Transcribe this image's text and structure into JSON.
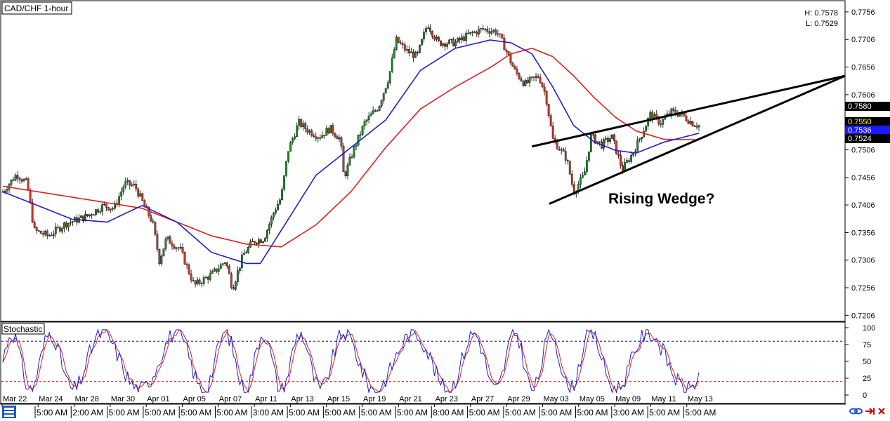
{
  "window": {
    "symbol_label": "CAD/CHF 1-hour"
  },
  "hl_box": {
    "high": "H: 0.7578",
    "low": "L: 0.7529"
  },
  "annotation": {
    "text": "Rising Wedge?"
  },
  "indicator": {
    "label": "Stochastic",
    "levels": [
      "100",
      "75",
      "50",
      "25",
      "0"
    ]
  },
  "price_tags": [
    {
      "label": "0.7580",
      "bg": "#000000",
      "fg": "#ffffff"
    },
    {
      "label": "0.7550",
      "bg": "#000000",
      "fg": "#ffff00"
    },
    {
      "label": "0.7536",
      "bg": "#1a1aff",
      "fg": "#ffffff"
    },
    {
      "label": "0.7524",
      "bg": "#000000",
      "fg": "#ffffff"
    }
  ],
  "colors": {
    "up": "#1f8a2d",
    "down": "#c0392b",
    "ma_fast": "#1f1fc8",
    "ma_slow": "#e02020",
    "stoch_k": "#1f1fc8",
    "stoch_d": "#e02020",
    "level_high": "#000080",
    "level_low": "#cc0000"
  },
  "icons": [
    "grid-menu-icon",
    "link-icon",
    "arrow-right-icon",
    "close-icon"
  ],
  "chart_data": {
    "type": "candlestick",
    "title": "CAD/CHF 1-hour",
    "y_ticks": [
      "0.7756",
      "0.7706",
      "0.7656",
      "0.7606",
      "0.7556",
      "0.7506",
      "0.7456",
      "0.7406",
      "0.7356",
      "0.7306",
      "0.7256",
      "0.7206"
    ],
    "ylim": [
      0.7195,
      0.7775
    ],
    "date_labels": [
      "Mar 22",
      "Mar 24",
      "Mar 28",
      "Mar 30",
      "Apr 01",
      "Apr 05",
      "Apr 07",
      "Apr 11",
      "Apr 13",
      "Apr 15",
      "Apr 19",
      "Apr 21",
      "Apr 23",
      "Apr 27",
      "Apr 29",
      "May 03",
      "May 05",
      "May 09",
      "May 11",
      "May 13"
    ],
    "time_labels": [
      "5:00 AM",
      "2:00 AM",
      "5:00 AM",
      "5:00 AM",
      "5:00 AM",
      "5:00 AM",
      "3:00 AM",
      "5:00 AM",
      "5:00 AM",
      "5:00 AM",
      "5:00 AM",
      "8:00 AM",
      "5:00 AM",
      "5:00 AM",
      "5:00 AM",
      "5:00 AM",
      "3:00 AM",
      "5:00 AM",
      "5:00 AM"
    ],
    "price_path": [
      [
        0,
        0.743
      ],
      [
        0.02,
        0.7462
      ],
      [
        0.035,
        0.7445
      ],
      [
        0.045,
        0.736
      ],
      [
        0.065,
        0.735
      ],
      [
        0.09,
        0.7372
      ],
      [
        0.12,
        0.7385
      ],
      [
        0.145,
        0.7405
      ],
      [
        0.16,
        0.74
      ],
      [
        0.175,
        0.7445
      ],
      [
        0.19,
        0.744
      ],
      [
        0.205,
        0.74
      ],
      [
        0.215,
        0.7375
      ],
      [
        0.225,
        0.7305
      ],
      [
        0.235,
        0.7345
      ],
      [
        0.255,
        0.7325
      ],
      [
        0.275,
        0.726
      ],
      [
        0.3,
        0.728
      ],
      [
        0.32,
        0.7305
      ],
      [
        0.33,
        0.7255
      ],
      [
        0.345,
        0.7315
      ],
      [
        0.36,
        0.734
      ],
      [
        0.375,
        0.7345
      ],
      [
        0.39,
        0.7395
      ],
      [
        0.4,
        0.742
      ],
      [
        0.41,
        0.7505
      ],
      [
        0.425,
        0.7555
      ],
      [
        0.44,
        0.754
      ],
      [
        0.455,
        0.753
      ],
      [
        0.47,
        0.7545
      ],
      [
        0.485,
        0.7525
      ],
      [
        0.49,
        0.7455
      ],
      [
        0.505,
        0.751
      ],
      [
        0.52,
        0.7555
      ],
      [
        0.54,
        0.7585
      ],
      [
        0.555,
        0.764
      ],
      [
        0.565,
        0.7705
      ],
      [
        0.58,
        0.7685
      ],
      [
        0.595,
        0.7675
      ],
      [
        0.61,
        0.7735
      ],
      [
        0.625,
        0.77
      ],
      [
        0.65,
        0.77
      ],
      [
        0.67,
        0.7715
      ],
      [
        0.69,
        0.7725
      ],
      [
        0.71,
        0.772
      ],
      [
        0.72,
        0.7695
      ],
      [
        0.735,
        0.765
      ],
      [
        0.75,
        0.7625
      ],
      [
        0.77,
        0.764
      ],
      [
        0.78,
        0.7605
      ],
      [
        0.79,
        0.7525
      ],
      [
        0.81,
        0.749
      ],
      [
        0.82,
        0.743
      ],
      [
        0.835,
        0.746
      ],
      [
        0.845,
        0.753
      ],
      [
        0.86,
        0.7515
      ],
      [
        0.875,
        0.753
      ],
      [
        0.89,
        0.747
      ],
      [
        0.905,
        0.75
      ],
      [
        0.92,
        0.754
      ],
      [
        0.93,
        0.757
      ],
      [
        0.945,
        0.7555
      ],
      [
        0.96,
        0.7575
      ],
      [
        0.975,
        0.757
      ],
      [
        0.99,
        0.7555
      ],
      [
        1,
        0.755
      ]
    ],
    "ma_fast_path": [
      [
        0,
        0.743
      ],
      [
        0.1,
        0.738
      ],
      [
        0.15,
        0.7375
      ],
      [
        0.2,
        0.7405
      ],
      [
        0.25,
        0.7375
      ],
      [
        0.3,
        0.732
      ],
      [
        0.35,
        0.73
      ],
      [
        0.37,
        0.73
      ],
      [
        0.4,
        0.736
      ],
      [
        0.45,
        0.746
      ],
      [
        0.5,
        0.751
      ],
      [
        0.55,
        0.756
      ],
      [
        0.6,
        0.765
      ],
      [
        0.65,
        0.769
      ],
      [
        0.7,
        0.7705
      ],
      [
        0.73,
        0.77
      ],
      [
        0.76,
        0.768
      ],
      [
        0.79,
        0.762
      ],
      [
        0.82,
        0.755
      ],
      [
        0.85,
        0.752
      ],
      [
        0.88,
        0.7505
      ],
      [
        0.91,
        0.75
      ],
      [
        0.95,
        0.752
      ],
      [
        1,
        0.7536
      ]
    ],
    "ma_slow_path": [
      [
        0,
        0.744
      ],
      [
        0.1,
        0.742
      ],
      [
        0.2,
        0.74
      ],
      [
        0.25,
        0.7375
      ],
      [
        0.3,
        0.735
      ],
      [
        0.35,
        0.7335
      ],
      [
        0.4,
        0.733
      ],
      [
        0.45,
        0.737
      ],
      [
        0.5,
        0.743
      ],
      [
        0.55,
        0.751
      ],
      [
        0.6,
        0.758
      ],
      [
        0.65,
        0.762
      ],
      [
        0.7,
        0.7655
      ],
      [
        0.73,
        0.768
      ],
      [
        0.76,
        0.769
      ],
      [
        0.79,
        0.7675
      ],
      [
        0.82,
        0.764
      ],
      [
        0.85,
        0.76
      ],
      [
        0.88,
        0.7565
      ],
      [
        0.91,
        0.754
      ],
      [
        0.95,
        0.7525
      ],
      [
        1,
        0.7524
      ]
    ],
    "trendlines": [
      {
        "from": [
          0.76,
          0.7512
        ],
        "to": [
          1.21,
          0.764
        ],
        "name": "wedge-upper"
      },
      {
        "from": [
          0.785,
          0.7408
        ],
        "to": [
          1.21,
          0.764
        ],
        "name": "wedge-lower"
      }
    ],
    "stochastic": {
      "ylim": [
        0,
        100
      ],
      "upper_level": 80,
      "lower_level": 20
    }
  }
}
